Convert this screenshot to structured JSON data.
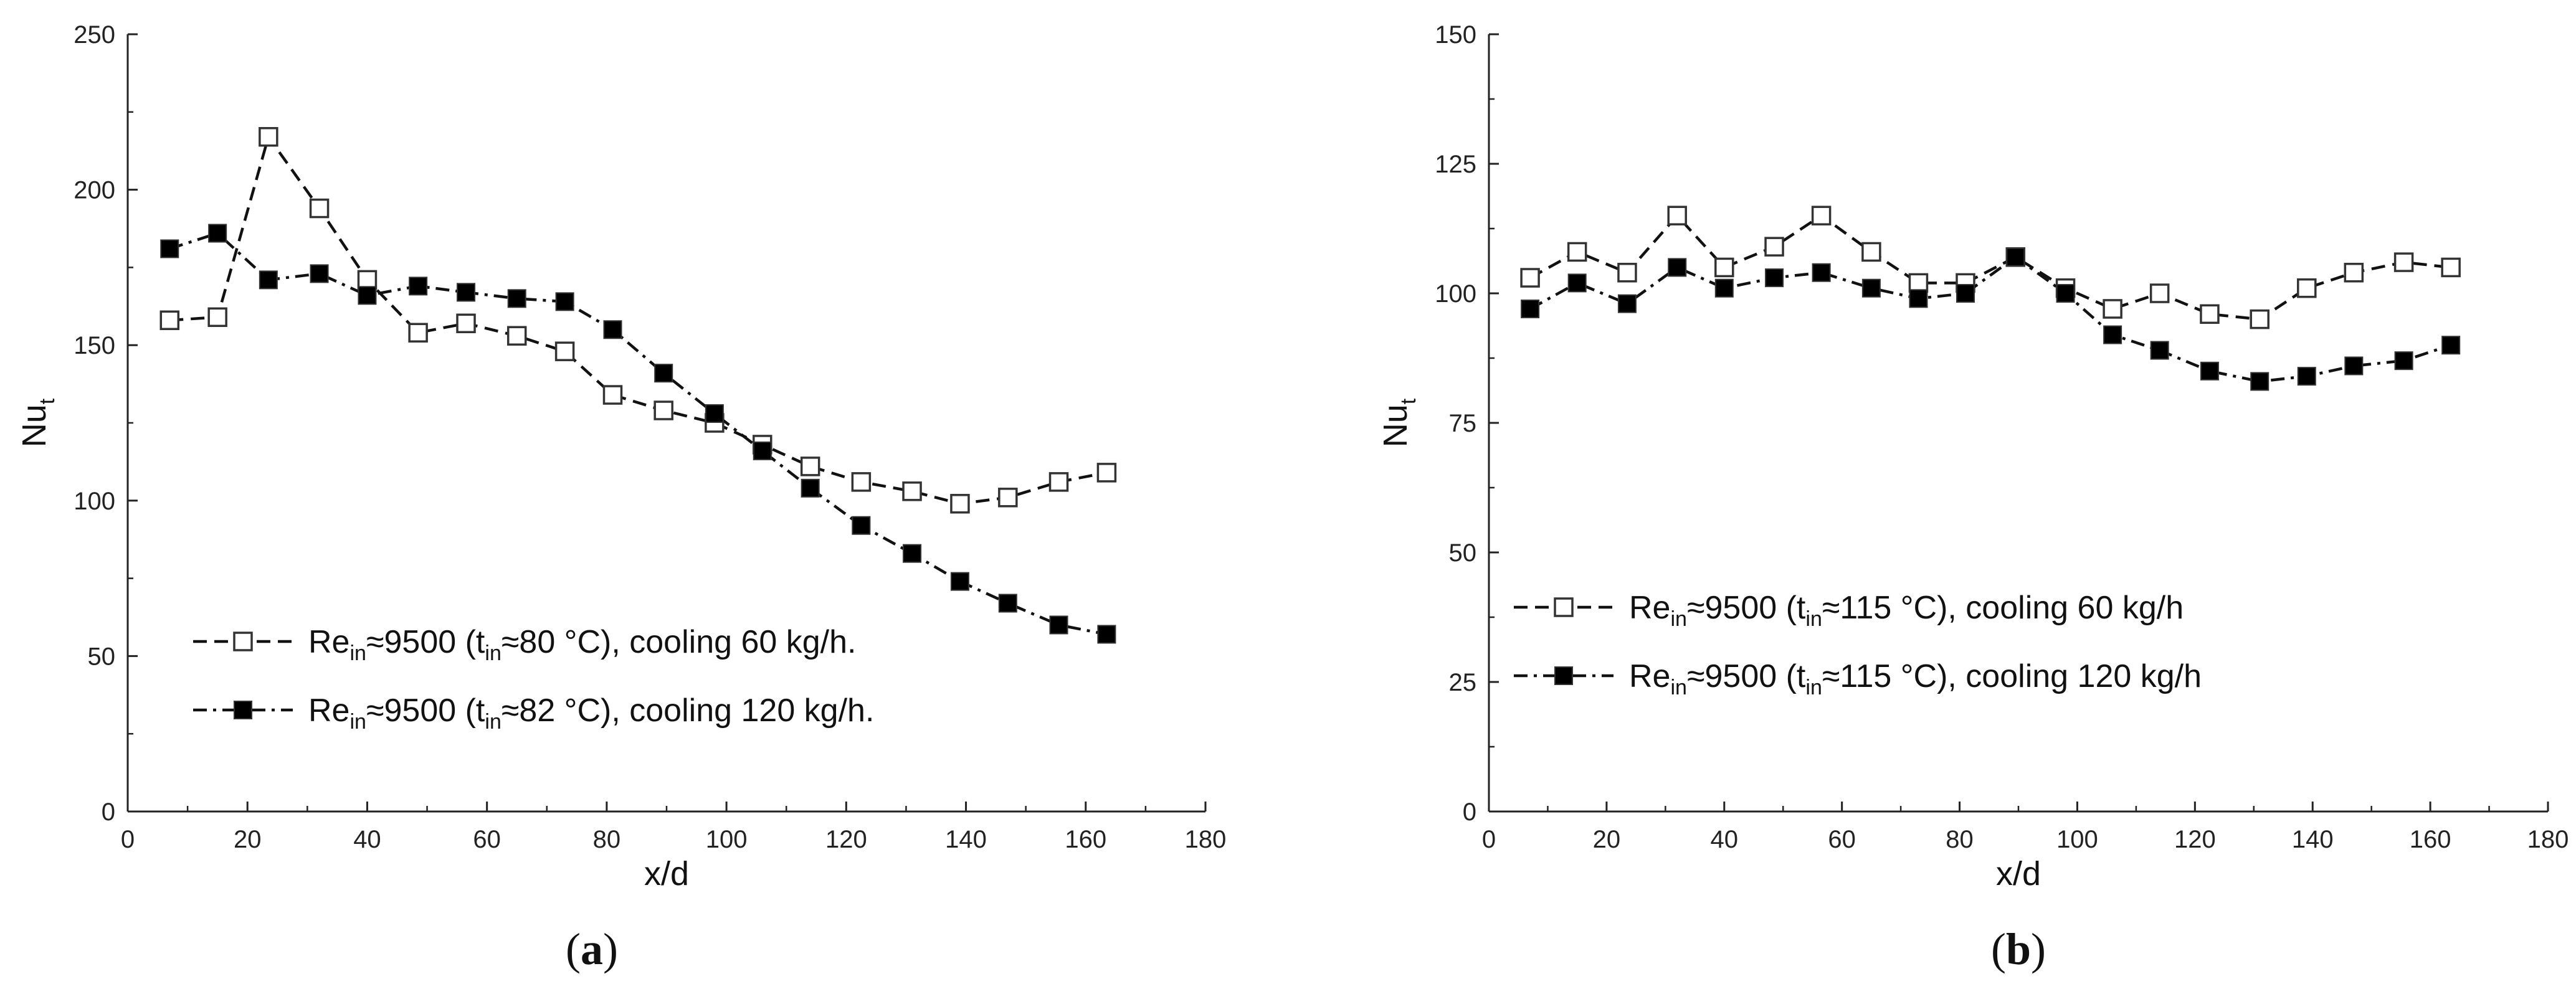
{
  "chart_data": [
    {
      "type": "line",
      "panel_label": {
        "open": "(",
        "letter": "a",
        "close": ")"
      },
      "xlabel": "x/d",
      "ylabel": {
        "main": "Nu",
        "sub": "t"
      },
      "xlim": [
        0,
        180
      ],
      "ylim": [
        0,
        250
      ],
      "xticks": [
        0,
        20,
        40,
        60,
        80,
        100,
        120,
        140,
        160,
        180
      ],
      "yticks": [
        0,
        50,
        100,
        150,
        200,
        250
      ],
      "grid": false,
      "legend_position": "bottom-left",
      "series": [
        {
          "name": "Re in≈9500 (t in≈80 °C), cooling 60 kg/h.",
          "legend": {
            "a": "Re",
            "a_sub": "in",
            "b": "≈9500 (t",
            "b_sub": "in",
            "c": "≈80 °C), cooling 60 kg/h."
          },
          "marker": "open-square",
          "line": "dash",
          "x": [
            7,
            15,
            23.5,
            32,
            40,
            48.5,
            56.5,
            65,
            73,
            81,
            89.5,
            98,
            106,
            114,
            122.5,
            131,
            139,
            147,
            155.5,
            163.5
          ],
          "y": [
            158,
            159,
            217,
            194,
            171,
            154,
            157,
            153,
            148,
            134,
            129,
            125,
            118,
            111,
            106,
            103,
            99,
            101,
            106,
            109
          ]
        },
        {
          "name": "Re in≈9500 (t in≈82 °C), cooling 120 kg/h.",
          "legend": {
            "a": "Re",
            "a_sub": "in",
            "b": "≈9500 (t",
            "b_sub": "in",
            "c": "≈82 °C), cooling 120 kg/h."
          },
          "marker": "filled-square",
          "line": "dashdot",
          "x": [
            7,
            15,
            23.5,
            32,
            40,
            48.5,
            56.5,
            65,
            73,
            81,
            89.5,
            98,
            106,
            114,
            122.5,
            131,
            139,
            147,
            155.5,
            163.5
          ],
          "y": [
            181,
            186,
            171,
            173,
            166,
            169,
            167,
            165,
            164,
            155,
            141,
            128,
            116,
            104,
            92,
            83,
            74,
            67,
            60,
            57
          ]
        }
      ]
    },
    {
      "type": "line",
      "panel_label": {
        "open": "(",
        "letter": "b",
        "close": ")"
      },
      "xlabel": "x/d",
      "ylabel": {
        "main": "Nu",
        "sub": "t"
      },
      "xlim": [
        0,
        180
      ],
      "ylim": [
        0,
        150
      ],
      "xticks": [
        0,
        20,
        40,
        60,
        80,
        100,
        120,
        140,
        160,
        180
      ],
      "yticks": [
        0,
        25,
        50,
        75,
        100,
        125,
        150
      ],
      "grid": false,
      "legend_position": "middle-left",
      "series": [
        {
          "name": "Re in≈9500 (t in≈115 °C), cooling 60 kg/h",
          "legend": {
            "a": "Re",
            "a_sub": "in",
            "b": "≈9500 (t",
            "b_sub": "in",
            "c": "≈115 °C), cooling 60 kg/h"
          },
          "marker": "open-square",
          "line": "dash",
          "x": [
            7,
            15,
            23.5,
            32,
            40,
            48.5,
            56.5,
            65,
            73,
            81,
            89.5,
            98,
            106,
            114,
            122.5,
            131,
            139,
            147,
            155.5,
            163.5
          ],
          "y": [
            103,
            108,
            104,
            115,
            105,
            109,
            115,
            108,
            102,
            102,
            107,
            101,
            97,
            100,
            96,
            95,
            101,
            104,
            106,
            105
          ]
        },
        {
          "name": "Re in≈9500 (t in≈115 °C), cooling 120 kg/h",
          "legend": {
            "a": "Re",
            "a_sub": "in",
            "b": "≈9500 (t",
            "b_sub": "in",
            "c": "≈115 °C), cooling 120 kg/h"
          },
          "marker": "filled-square",
          "line": "dashdot",
          "x": [
            7,
            15,
            23.5,
            32,
            40,
            48.5,
            56.5,
            65,
            73,
            81,
            89.5,
            98,
            106,
            114,
            122.5,
            131,
            139,
            147,
            155.5,
            163.5
          ],
          "y": [
            97,
            102,
            98,
            105,
            101,
            103,
            104,
            101,
            99,
            100,
            107,
            100,
            92,
            89,
            85,
            83,
            84,
            86,
            87,
            90
          ]
        }
      ]
    }
  ]
}
